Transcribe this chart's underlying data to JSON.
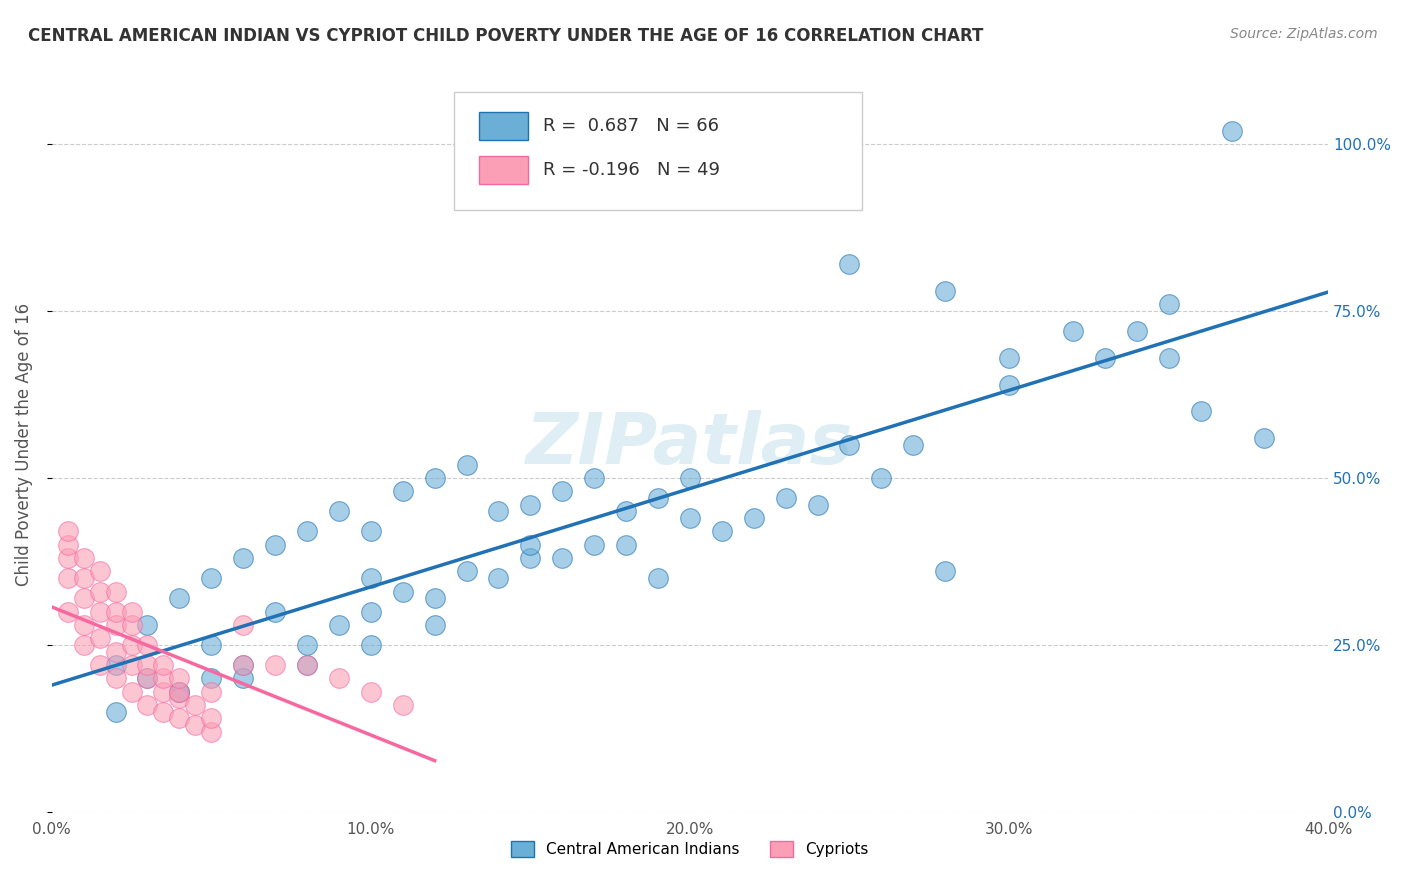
{
  "title": "CENTRAL AMERICAN INDIAN VS CYPRIOT CHILD POVERTY UNDER THE AGE OF 16 CORRELATION CHART",
  "source": "Source: ZipAtlas.com",
  "ylabel": "Child Poverty Under the Age of 16",
  "xlim": [
    0.0,
    0.4
  ],
  "ylim": [
    0.0,
    1.1
  ],
  "xticks": [
    0.0,
    0.1,
    0.2,
    0.3,
    0.4
  ],
  "xtick_labels": [
    "0.0%",
    "10.0%",
    "20.0%",
    "30.0%",
    "40.0%"
  ],
  "ytick_vals": [
    0.0,
    0.25,
    0.5,
    0.75,
    1.0
  ],
  "ytick_right_labels": [
    "0.0%",
    "25.0%",
    "50.0%",
    "75.0%",
    "100.0%"
  ],
  "grid_color": "#cccccc",
  "background_color": "#ffffff",
  "watermark": "ZIPatlas",
  "blue_R": 0.687,
  "blue_N": 66,
  "pink_R": -0.196,
  "pink_N": 49,
  "blue_color": "#6baed6",
  "pink_color": "#fa9fb5",
  "blue_line_color": "#2171b5",
  "pink_line_color": "#f768a1",
  "legend_label_blue": "Central American Indians",
  "legend_label_pink": "Cypriots",
  "blue_scatter_x": [
    0.02,
    0.03,
    0.04,
    0.05,
    0.06,
    0.07,
    0.08,
    0.09,
    0.1,
    0.11,
    0.12,
    0.13,
    0.14,
    0.15,
    0.16,
    0.17,
    0.18,
    0.19,
    0.2,
    0.22,
    0.24,
    0.25,
    0.26,
    0.28,
    0.3,
    0.32,
    0.33,
    0.34,
    0.35,
    0.36,
    0.03,
    0.05,
    0.07,
    0.09,
    0.11,
    0.13,
    0.15,
    0.17,
    0.19,
    0.21,
    0.04,
    0.06,
    0.08,
    0.1,
    0.12,
    0.14,
    0.16,
    0.18,
    0.23,
    0.27,
    0.02,
    0.04,
    0.06,
    0.08,
    0.1,
    0.12,
    0.25,
    0.3,
    0.35,
    0.38,
    0.05,
    0.1,
    0.15,
    0.2,
    0.28,
    0.37
  ],
  "blue_scatter_y": [
    0.22,
    0.28,
    0.32,
    0.35,
    0.38,
    0.4,
    0.42,
    0.45,
    0.42,
    0.48,
    0.5,
    0.52,
    0.45,
    0.46,
    0.48,
    0.5,
    0.45,
    0.47,
    0.44,
    0.44,
    0.46,
    0.82,
    0.5,
    0.78,
    0.64,
    0.72,
    0.68,
    0.72,
    0.76,
    0.6,
    0.2,
    0.25,
    0.3,
    0.28,
    0.33,
    0.36,
    0.38,
    0.4,
    0.35,
    0.42,
    0.18,
    0.22,
    0.25,
    0.3,
    0.32,
    0.35,
    0.38,
    0.4,
    0.47,
    0.55,
    0.15,
    0.18,
    0.2,
    0.22,
    0.25,
    0.28,
    0.55,
    0.68,
    0.68,
    0.56,
    0.2,
    0.35,
    0.4,
    0.5,
    0.36,
    1.02
  ],
  "pink_scatter_x": [
    0.005,
    0.01,
    0.015,
    0.02,
    0.025,
    0.03,
    0.035,
    0.04,
    0.045,
    0.05,
    0.005,
    0.01,
    0.015,
    0.02,
    0.025,
    0.03,
    0.035,
    0.04,
    0.045,
    0.05,
    0.005,
    0.01,
    0.015,
    0.02,
    0.025,
    0.03,
    0.035,
    0.04,
    0.06,
    0.07,
    0.005,
    0.01,
    0.015,
    0.02,
    0.025,
    0.03,
    0.035,
    0.04,
    0.05,
    0.06,
    0.005,
    0.01,
    0.015,
    0.02,
    0.025,
    0.08,
    0.09,
    0.1,
    0.11
  ],
  "pink_scatter_y": [
    0.3,
    0.25,
    0.22,
    0.2,
    0.18,
    0.16,
    0.15,
    0.14,
    0.13,
    0.12,
    0.35,
    0.28,
    0.26,
    0.24,
    0.22,
    0.2,
    0.18,
    0.17,
    0.16,
    0.14,
    0.38,
    0.32,
    0.3,
    0.28,
    0.25,
    0.22,
    0.2,
    0.18,
    0.28,
    0.22,
    0.4,
    0.35,
    0.33,
    0.3,
    0.28,
    0.25,
    0.22,
    0.2,
    0.18,
    0.22,
    0.42,
    0.38,
    0.36,
    0.33,
    0.3,
    0.22,
    0.2,
    0.18,
    0.16
  ]
}
